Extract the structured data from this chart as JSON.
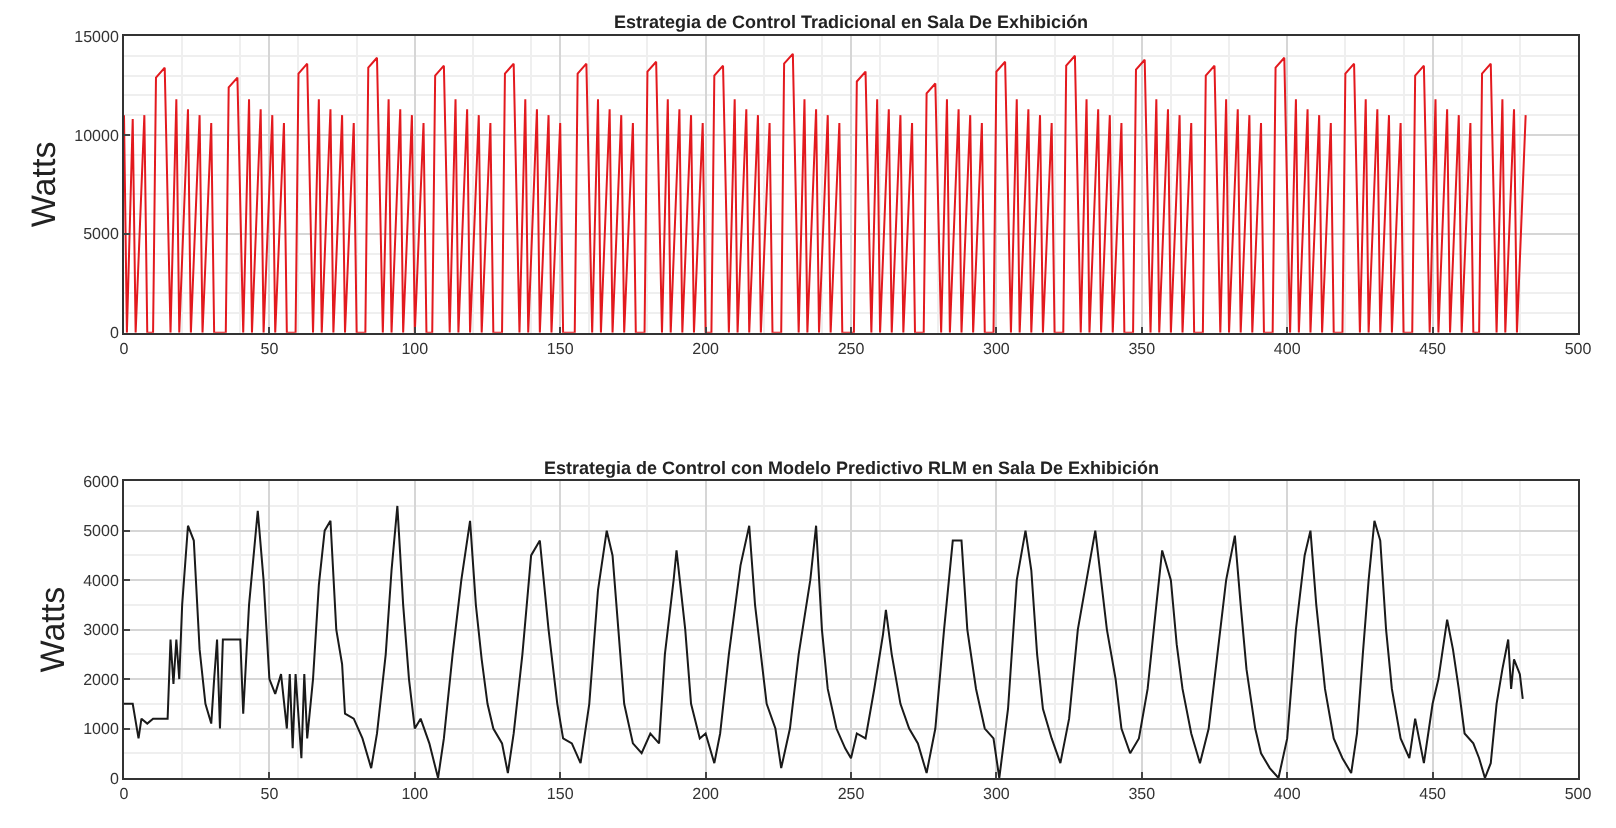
{
  "chart_data": [
    {
      "type": "line",
      "title": "Estrategia de Control Tradicional en Sala De Exhibición",
      "ylabel": "Watts",
      "grid": true,
      "xlim": [
        0,
        500
      ],
      "xticks": [
        0,
        50,
        100,
        150,
        200,
        250,
        300,
        350,
        400,
        450,
        500
      ],
      "ylim": [
        0,
        15000
      ],
      "yticks": [
        0,
        5000,
        10000,
        15000
      ],
      "series": [
        {
          "color": "#e3191e",
          "x": [
            0,
            1,
            3,
            4,
            7,
            8,
            10,
            11,
            14,
            16,
            18,
            19,
            22,
            23,
            26,
            27,
            30,
            31,
            35,
            36,
            39,
            41,
            43,
            44,
            47,
            48,
            51,
            52,
            55,
            56,
            59,
            60,
            63,
            65,
            67,
            68,
            71,
            72,
            75,
            76,
            79,
            80,
            83,
            84,
            87,
            89,
            91,
            92,
            95,
            96,
            99,
            100,
            103,
            104,
            106,
            107,
            110,
            112,
            114,
            115,
            118,
            119,
            122,
            123,
            126,
            127,
            130,
            131,
            134,
            136,
            138,
            139,
            142,
            143,
            146,
            147,
            150,
            151,
            155,
            156,
            159,
            161,
            163,
            164,
            167,
            168,
            171,
            172,
            175,
            176,
            179,
            180,
            183,
            185,
            187,
            188,
            191,
            192,
            195,
            196,
            199,
            200,
            202,
            203,
            206,
            208,
            210,
            211,
            214,
            215,
            218,
            219,
            222,
            223,
            226,
            227,
            230,
            232,
            234,
            235,
            238,
            239,
            242,
            243,
            246,
            247,
            251,
            252,
            255,
            257,
            259,
            260,
            263,
            264,
            267,
            268,
            271,
            272,
            275,
            276,
            279,
            281,
            283,
            284,
            287,
            288,
            291,
            292,
            295,
            296,
            299,
            300,
            303,
            305,
            307,
            308,
            311,
            312,
            315,
            316,
            319,
            320,
            323,
            324,
            327,
            329,
            331,
            332,
            335,
            336,
            339,
            340,
            343,
            344,
            347,
            348,
            351,
            353,
            355,
            356,
            359,
            360,
            363,
            364,
            367,
            368,
            371,
            372,
            375,
            377,
            379,
            380,
            383,
            384,
            387,
            388,
            391,
            392,
            395,
            396,
            399,
            401,
            403,
            404,
            407,
            408,
            411,
            412,
            415,
            416,
            419,
            420,
            423,
            425,
            427,
            428,
            431,
            432,
            435,
            436,
            439,
            440,
            443,
            444,
            447,
            449,
            451,
            452,
            455,
            456,
            459,
            460,
            463,
            464,
            466,
            467,
            470,
            472,
            474,
            475,
            478,
            479,
            482
          ],
          "values": [
            11000,
            0,
            10800,
            0,
            11000,
            0,
            0,
            12900,
            13400,
            0,
            11800,
            0,
            11300,
            0,
            11000,
            0,
            10600,
            0,
            0,
            12400,
            12900,
            0,
            11800,
            0,
            11300,
            0,
            11000,
            0,
            10600,
            0,
            0,
            13100,
            13600,
            0,
            11800,
            0,
            11300,
            0,
            11000,
            0,
            10600,
            0,
            0,
            13400,
            13900,
            0,
            11800,
            0,
            11300,
            0,
            11000,
            0,
            10600,
            0,
            0,
            13000,
            13500,
            0,
            11800,
            0,
            11300,
            0,
            11000,
            0,
            10600,
            0,
            0,
            13100,
            13600,
            0,
            11800,
            0,
            11300,
            0,
            11000,
            0,
            10600,
            0,
            0,
            13100,
            13600,
            0,
            11800,
            0,
            11300,
            0,
            11000,
            0,
            10600,
            0,
            0,
            13200,
            13700,
            0,
            11800,
            0,
            11300,
            0,
            11000,
            0,
            10600,
            0,
            0,
            13000,
            13500,
            0,
            11800,
            0,
            11300,
            0,
            11000,
            0,
            10600,
            0,
            0,
            13600,
            14100,
            0,
            11800,
            0,
            11300,
            0,
            11000,
            0,
            10600,
            0,
            0,
            12700,
            13200,
            0,
            11800,
            0,
            11300,
            0,
            11000,
            0,
            10600,
            0,
            0,
            12100,
            12600,
            0,
            11800,
            0,
            11300,
            0,
            11000,
            0,
            10600,
            0,
            0,
            13200,
            13700,
            0,
            11800,
            0,
            11300,
            0,
            11000,
            0,
            10600,
            0,
            0,
            13500,
            14000,
            0,
            11800,
            0,
            11300,
            0,
            11000,
            0,
            10600,
            0,
            0,
            13300,
            13800,
            0,
            11800,
            0,
            11300,
            0,
            11000,
            0,
            10600,
            0,
            0,
            13000,
            13500,
            0,
            11800,
            0,
            11300,
            0,
            11000,
            0,
            10600,
            0,
            0,
            13400,
            13900,
            0,
            11800,
            0,
            11300,
            0,
            11000,
            0,
            10600,
            0,
            0,
            13100,
            13600,
            0,
            11800,
            0,
            11300,
            0,
            11000,
            0,
            10600,
            0,
            0,
            13000,
            13500,
            0,
            11800,
            0,
            11300,
            0,
            11000,
            0,
            10600,
            0,
            0,
            13100,
            13600,
            0,
            11800,
            0,
            11300,
            0,
            11000
          ]
        }
      ]
    },
    {
      "type": "line",
      "title": "Estrategia de Control con Modelo Predictivo RLM en Sala De Exhibición",
      "ylabel": "Watts",
      "grid": true,
      "xlim": [
        0,
        500
      ],
      "xticks": [
        0,
        50,
        100,
        150,
        200,
        250,
        300,
        350,
        400,
        450,
        500
      ],
      "ylim": [
        0,
        6000
      ],
      "yticks": [
        0,
        1000,
        2000,
        3000,
        4000,
        5000,
        6000
      ],
      "series": [
        {
          "color": "#1a1a1a",
          "x": [
            0,
            3,
            5,
            6,
            8,
            10,
            15,
            16,
            17,
            18,
            19,
            20,
            22,
            24,
            26,
            28,
            30,
            31,
            32,
            33,
            34,
            40,
            41,
            43,
            46,
            48,
            50,
            52,
            54,
            56,
            57,
            58,
            59,
            61,
            62,
            63,
            65,
            67,
            69,
            71,
            73,
            75,
            76,
            79,
            82,
            85,
            87,
            90,
            92,
            94,
            96,
            98,
            100,
            102,
            105,
            108,
            110,
            113,
            116,
            119,
            121,
            123,
            125,
            127,
            130,
            132,
            134,
            137,
            140,
            143,
            146,
            149,
            151,
            154,
            157,
            160,
            163,
            166,
            168,
            170,
            172,
            175,
            178,
            181,
            184,
            186,
            189,
            190,
            193,
            195,
            198,
            200,
            203,
            205,
            208,
            212,
            215,
            217,
            219,
            221,
            224,
            226,
            229,
            232,
            236,
            238,
            240,
            242,
            245,
            248,
            250,
            252,
            255,
            258,
            261,
            262,
            264,
            267,
            270,
            273,
            276,
            279,
            282,
            285,
            288,
            290,
            293,
            296,
            299,
            301,
            304,
            307,
            310,
            312,
            314,
            316,
            319,
            322,
            325,
            328,
            331,
            334,
            336,
            338,
            341,
            343,
            346,
            349,
            352,
            355,
            357,
            360,
            362,
            364,
            367,
            370,
            373,
            376,
            379,
            382,
            384,
            386,
            389,
            391,
            394,
            397,
            400,
            403,
            406,
            408,
            410,
            413,
            416,
            419,
            422,
            424,
            426,
            428,
            430,
            432,
            434,
            436,
            439,
            442,
            444,
            447,
            450,
            452,
            455,
            457,
            459,
            461,
            464,
            466,
            468,
            470,
            472,
            474,
            476,
            477,
            478,
            480,
            481
          ],
          "values": [
            1500,
            1500,
            800,
            1200,
            1100,
            1200,
            1200,
            2800,
            1900,
            2800,
            2000,
            3500,
            5100,
            4800,
            2600,
            1500,
            1100,
            2000,
            2800,
            1000,
            2800,
            2800,
            1300,
            3500,
            5400,
            4000,
            2000,
            1700,
            2100,
            1000,
            2100,
            600,
            2100,
            400,
            2100,
            800,
            2000,
            3900,
            5000,
            5200,
            3000,
            2300,
            1300,
            1200,
            800,
            200,
            900,
            2500,
            4200,
            5500,
            3500,
            2000,
            1000,
            1200,
            700,
            0,
            800,
            2500,
            4000,
            5200,
            3500,
            2400,
            1500,
            1000,
            700,
            100,
            900,
            2500,
            4500,
            4800,
            3000,
            1500,
            800,
            700,
            300,
            1500,
            3800,
            5000,
            4500,
            3000,
            1500,
            700,
            500,
            900,
            700,
            2500,
            4000,
            4600,
            3000,
            1500,
            800,
            900,
            300,
            900,
            2500,
            4300,
            5100,
            3500,
            2500,
            1500,
            1000,
            200,
            1000,
            2500,
            4000,
            5100,
            3000,
            1800,
            1000,
            600,
            400,
            900,
            800,
            1800,
            2900,
            3400,
            2500,
            1500,
            1000,
            700,
            100,
            1000,
            3000,
            4800,
            4800,
            3000,
            1800,
            1000,
            800,
            0,
            1400,
            4000,
            5000,
            4200,
            2500,
            1400,
            800,
            300,
            1200,
            3000,
            4000,
            5000,
            4000,
            3000,
            2000,
            1000,
            500,
            800,
            1800,
            3500,
            4600,
            4000,
            2700,
            1800,
            900,
            300,
            1000,
            2500,
            4000,
            4900,
            3500,
            2200,
            1000,
            500,
            200,
            0,
            800,
            3000,
            4500,
            5000,
            3500,
            1800,
            800,
            400,
            100,
            900,
            2500,
            4000,
            5200,
            4800,
            3000,
            1800,
            800,
            400,
            1200,
            300,
            1500,
            2000,
            3200,
            2600,
            1800,
            900,
            700,
            400,
            0,
            300,
            1500,
            2200,
            2800,
            1800,
            2400,
            2100,
            1600
          ]
        }
      ]
    }
  ]
}
